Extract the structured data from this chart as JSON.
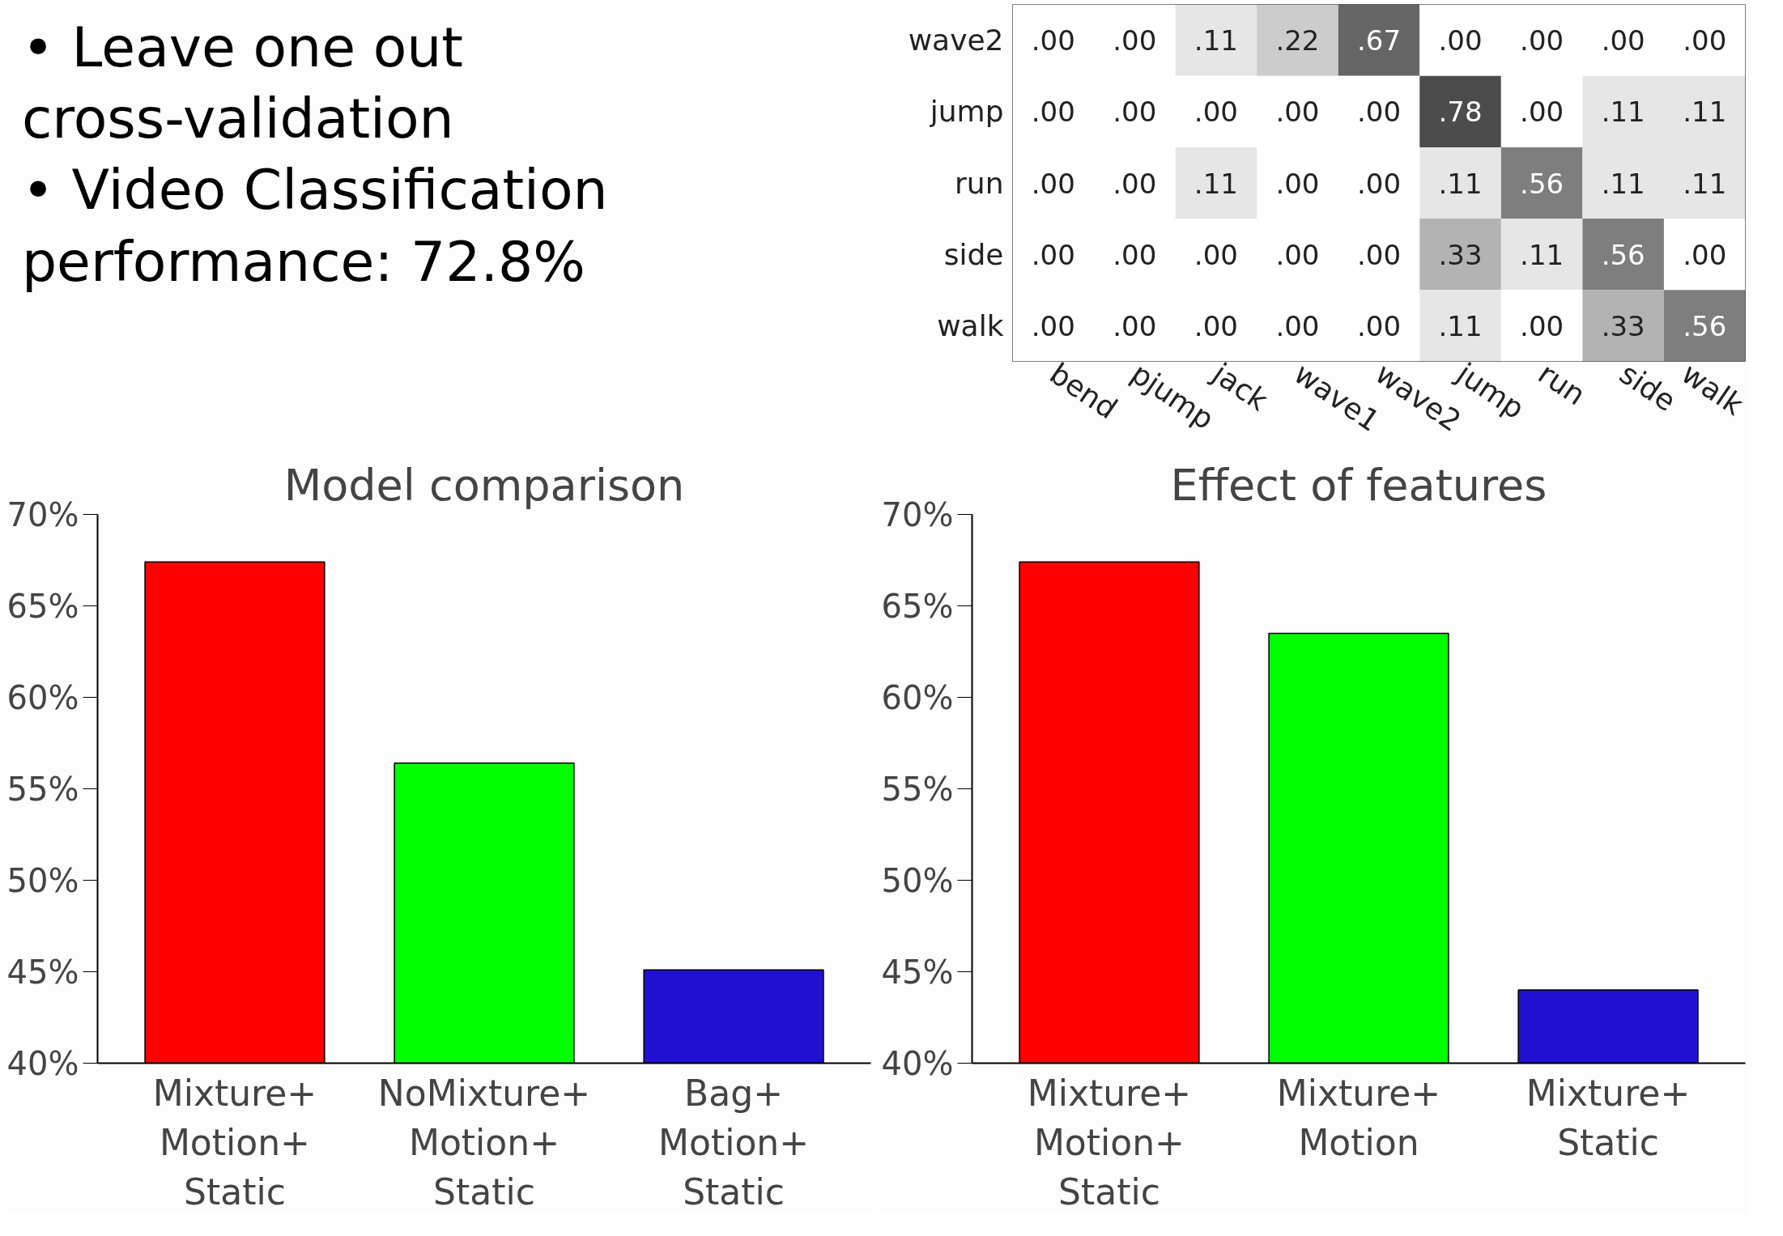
{
  "chart_data": [
    {
      "type": "other",
      "annotations": [
        "• Leave one out",
        "cross-validation",
        "• Video Classification",
        "performance: 72.8%"
      ]
    },
    {
      "type": "heatmap",
      "categories": [
        "bend",
        "pjump",
        "jack",
        "wave1",
        "wave2",
        "jump",
        "run",
        "side",
        "walk"
      ],
      "y_categories": [
        "wave2",
        "jump",
        "run",
        "side",
        "walk"
      ],
      "cells": [
        [
          0.0,
          0.0,
          0.11,
          0.22,
          0.67,
          0.0,
          0.0,
          0.0,
          0.0
        ],
        [
          0.0,
          0.0,
          0.0,
          0.0,
          0.0,
          0.78,
          0.0,
          0.11,
          0.11
        ],
        [
          0.0,
          0.0,
          0.11,
          0.0,
          0.0,
          0.11,
          0.56,
          0.11,
          0.11
        ],
        [
          0.0,
          0.0,
          0.0,
          0.0,
          0.0,
          0.33,
          0.11,
          0.56,
          0.0
        ],
        [
          0.0,
          0.0,
          0.0,
          0.0,
          0.0,
          0.11,
          0.0,
          0.33,
          0.56
        ]
      ],
      "cell_labels": [
        [
          ".00",
          ".00",
          ".11",
          ".22",
          ".67",
          ".00",
          ".00",
          ".00",
          ".00"
        ],
        [
          ".00",
          ".00",
          ".00",
          ".00",
          ".00",
          ".78",
          ".00",
          ".11",
          ".11"
        ],
        [
          ".00",
          ".00",
          ".11",
          ".00",
          ".00",
          ".11",
          ".56",
          ".11",
          ".11"
        ],
        [
          ".00",
          ".00",
          ".00",
          ".00",
          ".00",
          ".33",
          ".11",
          ".56",
          ".00"
        ],
        [
          ".00",
          ".00",
          ".00",
          ".00",
          ".00",
          ".11",
          ".00",
          ".33",
          ".56"
        ]
      ]
    },
    {
      "type": "bar",
      "title": "Model comparison",
      "categories": [
        "Mixture+\nMotion+\nStatic",
        "NoMixture+\nMotion+\nStatic",
        "Bag+\nMotion+\nStatic"
      ],
      "values": [
        67.4,
        56.4,
        45.1
      ],
      "colors": [
        "#ff0000",
        "#00ff00",
        "#2010d0"
      ],
      "ylim": [
        40,
        70
      ],
      "yticks": [
        {
          "value": 40,
          "label": "40%"
        },
        {
          "value": 45,
          "label": "45%"
        },
        {
          "value": 50,
          "label": "50%"
        },
        {
          "value": 55,
          "label": "55%"
        },
        {
          "value": 60,
          "label": "60%"
        },
        {
          "value": 65,
          "label": "65%"
        },
        {
          "value": 70,
          "label": "70%"
        }
      ],
      "grid": false
    },
    {
      "type": "bar",
      "title": "Effect of features",
      "categories": [
        "Mixture+\nMotion+\nStatic",
        "Mixture+\nMotion",
        "Mixture+\nStatic"
      ],
      "values": [
        67.4,
        63.5,
        44.0
      ],
      "colors": [
        "#ff0000",
        "#00ff00",
        "#2010d0"
      ],
      "ylim": [
        40,
        70
      ],
      "yticks": [
        {
          "value": 40,
          "label": "40%"
        },
        {
          "value": 45,
          "label": "45%"
        },
        {
          "value": 50,
          "label": "50%"
        },
        {
          "value": 55,
          "label": "55%"
        },
        {
          "value": 60,
          "label": "60%"
        },
        {
          "value": 65,
          "label": "65%"
        },
        {
          "value": 70,
          "label": "70%"
        }
      ],
      "grid": false
    }
  ]
}
